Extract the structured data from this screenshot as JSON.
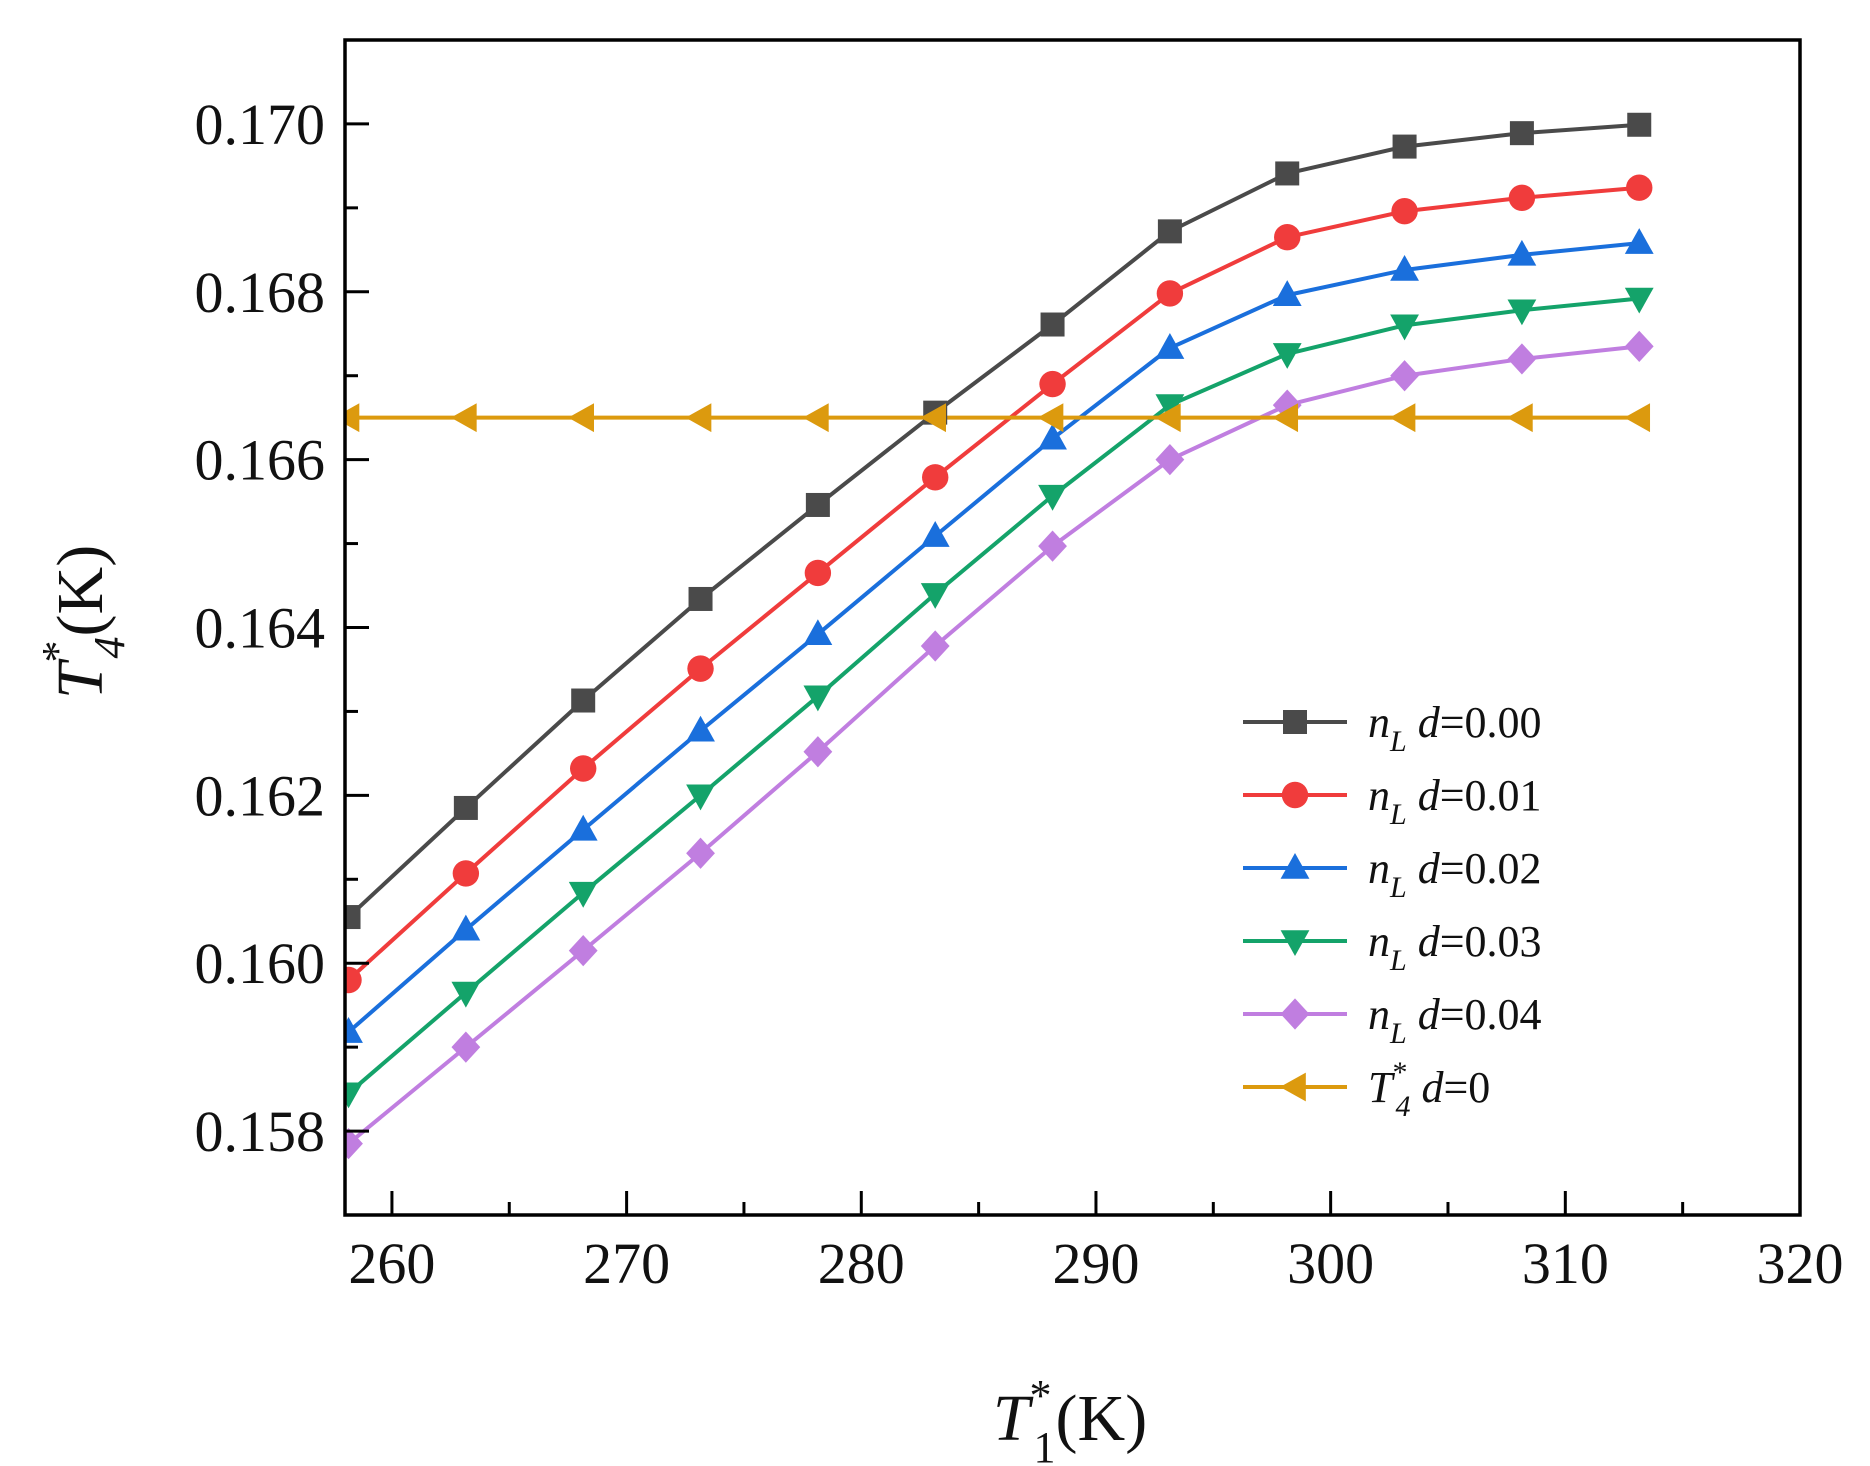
{
  "chart_data": {
    "type": "line",
    "title": "",
    "xlabel": {
      "symbol": "T",
      "sup": "*",
      "sub": "1",
      "unit": "(K)"
    },
    "ylabel": {
      "symbol": "T",
      "sup": "*",
      "sub": "4",
      "unit": "(K)"
    },
    "xlim": [
      258,
      320
    ],
    "ylim": [
      0.157,
      0.171
    ],
    "xticks": [
      260,
      270,
      280,
      290,
      300,
      310,
      320
    ],
    "xtick_labels": [
      "260",
      "270",
      "280",
      "290",
      "300",
      "310",
      "320"
    ],
    "yticks": [
      0.158,
      0.16,
      0.162,
      0.164,
      0.166,
      0.168,
      0.17
    ],
    "ytick_labels": [
      "0.158",
      "0.160",
      "0.162",
      "0.164",
      "0.166",
      "0.168",
      "0.170"
    ],
    "grid": false,
    "legend_position": "center-right",
    "x": [
      258.15,
      263.15,
      268.15,
      273.15,
      278.15,
      283.15,
      288.15,
      293.15,
      298.15,
      303.15,
      308.15,
      313.15
    ],
    "series": [
      {
        "name": "n_L d=0.00",
        "label_a": "n",
        "label_sub": "L",
        "label_b": " d",
        "label_c": "=0.00",
        "color": "#4a4a4a",
        "marker": "square",
        "values": [
          0.16055,
          0.16185,
          0.16313,
          0.16434,
          0.16546,
          0.16656,
          0.16761,
          0.16872,
          0.16941,
          0.16973,
          0.16989,
          0.16999
        ]
      },
      {
        "name": "n_L d=0.01",
        "label_a": "n",
        "label_sub": "L",
        "label_b": " d",
        "label_c": "=0.01",
        "color": "#f03c3c",
        "marker": "circle",
        "values": [
          0.1598,
          0.16107,
          0.16232,
          0.16351,
          0.16465,
          0.16579,
          0.1669,
          0.16798,
          0.16865,
          0.16896,
          0.16912,
          0.16924
        ]
      },
      {
        "name": "n_L d=0.02",
        "label_a": "n",
        "label_sub": "L",
        "label_b": " d",
        "label_c": "=0.02",
        "color": "#1a6fdc",
        "marker": "triangle-up",
        "values": [
          0.15918,
          0.1604,
          0.16159,
          0.16277,
          0.16392,
          0.16509,
          0.16625,
          0.16733,
          0.16796,
          0.16826,
          0.16844,
          0.16858
        ]
      },
      {
        "name": "n_L d=0.03",
        "label_a": "n",
        "label_sub": "L",
        "label_b": " d",
        "label_c": "=0.03",
        "color": "#14a36a",
        "marker": "triangle-down",
        "values": [
          0.15845,
          0.15965,
          0.16084,
          0.162,
          0.16318,
          0.1644,
          0.16557,
          0.16665,
          0.16726,
          0.1676,
          0.16778,
          0.16792
        ]
      },
      {
        "name": "n_L d=0.04",
        "label_a": "n",
        "label_sub": "L",
        "label_b": " d",
        "label_c": "=0.04",
        "color": "#c07ee0",
        "marker": "diamond",
        "values": [
          0.15785,
          0.159,
          0.16015,
          0.16131,
          0.16252,
          0.16378,
          0.16497,
          0.166,
          0.16665,
          0.167,
          0.1672,
          0.16735
        ]
      },
      {
        "name": "T_4* d=0",
        "label_a": "T",
        "label_sub": "4",
        "label_sup": "*",
        "label_b": " d",
        "label_c": "=0",
        "color": "#dc9a0e",
        "marker": "triangle-left",
        "values": [
          0.1665,
          0.1665,
          0.1665,
          0.1665,
          0.1665,
          0.1665,
          0.1665,
          0.1665,
          0.1665,
          0.1665,
          0.1665,
          0.1665
        ]
      }
    ]
  }
}
